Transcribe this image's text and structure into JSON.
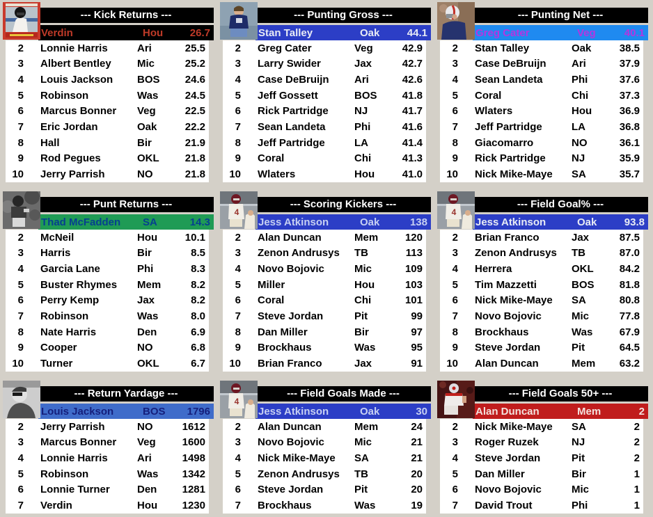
{
  "ui_colors": {
    "page_bg": "#d4d0c8",
    "panel_bg": "#ffffff",
    "header_bg": "#000000",
    "header_fg": "#ffffff",
    "row_fg": "#000000"
  },
  "panels": [
    {
      "id": "kick-returns",
      "title": "--- Kick Returns ---",
      "photo": "gamblers-card-photo",
      "leader": {
        "name": "Verdin",
        "team": "Hou",
        "value": "26.7",
        "bg": "#000000",
        "fg": "#bf3a28"
      },
      "rows": [
        {
          "rank": "2",
          "name": "Lonnie Harris",
          "team": "Ari",
          "value": "25.5"
        },
        {
          "rank": "3",
          "name": "Albert Bentley",
          "team": "Mic",
          "value": "25.2"
        },
        {
          "rank": "4",
          "name": "Louis Jackson",
          "team": "BOS",
          "value": "24.6"
        },
        {
          "rank": "5",
          "name": "Robinson",
          "team": "Was",
          "value": "24.5"
        },
        {
          "rank": "6",
          "name": "Marcus Bonner",
          "team": "Veg",
          "value": "22.5"
        },
        {
          "rank": "7",
          "name": "Eric Jordan",
          "team": "Oak",
          "value": "22.2"
        },
        {
          "rank": "8",
          "name": "Hall",
          "team": "Bir",
          "value": "21.9"
        },
        {
          "rank": "9",
          "name": "Rod Pegues",
          "team": "OKL",
          "value": "21.8"
        },
        {
          "rank": "10",
          "name": "Jerry Parrish",
          "team": "NO",
          "value": "21.8"
        }
      ]
    },
    {
      "id": "punting-gross",
      "title": "--- Punting Gross ---",
      "photo": "punter-photo",
      "leader": {
        "name": "Stan Talley",
        "team": "Oak",
        "value": "44.1",
        "bg": "#2c3ec6",
        "fg": "#e8ebf5"
      },
      "rows": [
        {
          "rank": "2",
          "name": "Greg Cater",
          "team": "Veg",
          "value": "42.9"
        },
        {
          "rank": "3",
          "name": "Larry Swider",
          "team": "Jax",
          "value": "42.7"
        },
        {
          "rank": "4",
          "name": "Case DeBruijn",
          "team": "Ari",
          "value": "42.6"
        },
        {
          "rank": "5",
          "name": "Jeff Gossett",
          "team": "BOS",
          "value": "41.8"
        },
        {
          "rank": "6",
          "name": "Rick Partridge",
          "team": "NJ",
          "value": "41.7"
        },
        {
          "rank": "7",
          "name": "Sean Landeta",
          "team": "Phi",
          "value": "41.6"
        },
        {
          "rank": "8",
          "name": "Jeff Partridge",
          "team": "LA",
          "value": "41.4"
        },
        {
          "rank": "9",
          "name": "Coral",
          "team": "Chi",
          "value": "41.3"
        },
        {
          "rank": "10",
          "name": "Wlaters",
          "team": "Hou",
          "value": "41.0"
        }
      ]
    },
    {
      "id": "punting-net",
      "title": "--- Punting Net ---",
      "photo": "bills-punter-photo",
      "leader": {
        "name": "Greg Cater",
        "team": "Veg",
        "value": "40.1",
        "bg": "#1f8af0",
        "fg": "#b535e0"
      },
      "rows": [
        {
          "rank": "2",
          "name": "Stan Talley",
          "team": "Oak",
          "value": "38.5"
        },
        {
          "rank": "3",
          "name": "Case DeBruijn",
          "team": "Ari",
          "value": "37.9"
        },
        {
          "rank": "4",
          "name": "Sean Landeta",
          "team": "Phi",
          "value": "37.6"
        },
        {
          "rank": "5",
          "name": "Coral",
          "team": "Chi",
          "value": "37.3"
        },
        {
          "rank": "6",
          "name": "Wlaters",
          "team": "Hou",
          "value": "36.9"
        },
        {
          "rank": "7",
          "name": "Jeff Partridge",
          "team": "LA",
          "value": "36.8"
        },
        {
          "rank": "8",
          "name": "Giacomarro",
          "team": "NO",
          "value": "36.1"
        },
        {
          "rank": "9",
          "name": "Rick Partridge",
          "team": "NJ",
          "value": "35.9"
        },
        {
          "rank": "10",
          "name": "Nick Mike-Maye",
          "team": "SA",
          "value": "35.7"
        }
      ]
    },
    {
      "id": "punt-returns",
      "title": "--- Punt Returns ---",
      "photo": "bw-returner-photo",
      "leader": {
        "name": "Thad McFadden",
        "team": "SA",
        "value": "14.3",
        "bg": "#1f9b55",
        "fg": "#06408f"
      },
      "rows": [
        {
          "rank": "2",
          "name": "McNeil",
          "team": "Hou",
          "value": "10.1"
        },
        {
          "rank": "3",
          "name": "Harris",
          "team": "Bir",
          "value": "8.5"
        },
        {
          "rank": "4",
          "name": "Garcia Lane",
          "team": "Phi",
          "value": "8.3"
        },
        {
          "rank": "5",
          "name": "Buster Rhymes",
          "team": "Mem",
          "value": "8.2"
        },
        {
          "rank": "6",
          "name": "Perry Kemp",
          "team": "Jax",
          "value": "8.2"
        },
        {
          "rank": "7",
          "name": "Robinson",
          "team": "Was",
          "value": "8.0"
        },
        {
          "rank": "8",
          "name": "Nate Harris",
          "team": "Den",
          "value": "6.9"
        },
        {
          "rank": "9",
          "name": "Cooper",
          "team": "NO",
          "value": "6.8"
        },
        {
          "rank": "10",
          "name": "Turner",
          "team": "OKL",
          "value": "6.7"
        }
      ]
    },
    {
      "id": "scoring-kickers",
      "title": "--- Scoring Kickers ---",
      "photo": "kicker-photo",
      "leader": {
        "name": "Jess Atkinson",
        "team": "Oak",
        "value": "138",
        "bg": "#2c3ec6",
        "fg": "#c7d0f2"
      },
      "rows": [
        {
          "rank": "2",
          "name": "Alan Duncan",
          "team": "Mem",
          "value": "120"
        },
        {
          "rank": "3",
          "name": "Zenon Andrusys",
          "team": "TB",
          "value": "113"
        },
        {
          "rank": "4",
          "name": "Novo Bojovic",
          "team": "Mic",
          "value": "109"
        },
        {
          "rank": "5",
          "name": "Miller",
          "team": "Hou",
          "value": "103"
        },
        {
          "rank": "6",
          "name": "Coral",
          "team": "Chi",
          "value": "101"
        },
        {
          "rank": "7",
          "name": "Steve Jordan",
          "team": "Pit",
          "value": "99"
        },
        {
          "rank": "8",
          "name": "Dan Miller",
          "team": "Bir",
          "value": "97"
        },
        {
          "rank": "9",
          "name": "Brockhaus",
          "team": "Was",
          "value": "95"
        },
        {
          "rank": "10",
          "name": "Brian Franco",
          "team": "Jax",
          "value": "91"
        }
      ]
    },
    {
      "id": "field-goal-pct",
      "title": "--- Field Goal% ---",
      "photo": "kicker-photo",
      "leader": {
        "name": "Jess Atkinson",
        "team": "Oak",
        "value": "93.8",
        "bg": "#2c3ec6",
        "fg": "#e8ebf5"
      },
      "rows": [
        {
          "rank": "2",
          "name": "Brian Franco",
          "team": "Jax",
          "value": "87.5"
        },
        {
          "rank": "3",
          "name": "Zenon Andrusys",
          "team": "TB",
          "value": "87.0"
        },
        {
          "rank": "4",
          "name": "Herrera",
          "team": "OKL",
          "value": "84.2"
        },
        {
          "rank": "5",
          "name": "Tim Mazzetti",
          "team": "BOS",
          "value": "81.8"
        },
        {
          "rank": "6",
          "name": "Nick Mike-Maye",
          "team": "SA",
          "value": "80.8"
        },
        {
          "rank": "7",
          "name": "Novo Bojovic",
          "team": "Mic",
          "value": "77.8"
        },
        {
          "rank": "8",
          "name": "Brockhaus",
          "team": "Was",
          "value": "67.9"
        },
        {
          "rank": "9",
          "name": "Steve Jordan",
          "team": "Pit",
          "value": "64.5"
        },
        {
          "rank": "10",
          "name": "Alan Duncan",
          "team": "Mem",
          "value": "63.2"
        }
      ]
    },
    {
      "id": "return-yardage",
      "title": "--- Return Yardage ---",
      "photo": "bw-portrait-photo",
      "leader": {
        "name": "Louis Jackson",
        "team": "BOS",
        "value": "1796",
        "bg": "#3f6cca",
        "fg": "#151f7c"
      },
      "rows": [
        {
          "rank": "2",
          "name": "Jerry Parrish",
          "team": "NO",
          "value": "1612"
        },
        {
          "rank": "3",
          "name": "Marcus Bonner",
          "team": "Veg",
          "value": "1600"
        },
        {
          "rank": "4",
          "name": "Lonnie Harris",
          "team": "Ari",
          "value": "1498"
        },
        {
          "rank": "5",
          "name": "Robinson",
          "team": "Was",
          "value": "1342"
        },
        {
          "rank": "6",
          "name": "Lonnie Turner",
          "team": "Den",
          "value": "1281"
        },
        {
          "rank": "7",
          "name": "Verdin",
          "team": "Hou",
          "value": "1230"
        }
      ]
    },
    {
      "id": "field-goals-made",
      "title": "--- Field Goals Made ---",
      "photo": "kicker-photo",
      "leader": {
        "name": "Jess Atkinson",
        "team": "Oak",
        "value": "30",
        "bg": "#2c3ec6",
        "fg": "#c7d0f2"
      },
      "rows": [
        {
          "rank": "2",
          "name": "Alan Duncan",
          "team": "Mem",
          "value": "24"
        },
        {
          "rank": "3",
          "name": "Novo Bojovic",
          "team": "Mic",
          "value": "21"
        },
        {
          "rank": "4",
          "name": "Nick Mike-Maye",
          "team": "SA",
          "value": "21"
        },
        {
          "rank": "5",
          "name": "Zenon Andrusys",
          "team": "TB",
          "value": "20"
        },
        {
          "rank": "6",
          "name": "Steve Jordan",
          "team": "Pit",
          "value": "20"
        },
        {
          "rank": "7",
          "name": "Brockhaus",
          "team": "Was",
          "value": "19"
        }
      ]
    },
    {
      "id": "field-goals-50plus",
      "title": "--- Field Goals 50+ ---",
      "photo": "runner-photo",
      "leader": {
        "name": "Alan Duncan",
        "team": "Mem",
        "value": "2",
        "bg": "#c01d1d",
        "fg": "#f3e2de"
      },
      "rows": [
        {
          "rank": "2",
          "name": "Nick Mike-Maye",
          "team": "SA",
          "value": "2"
        },
        {
          "rank": "3",
          "name": "Roger Ruzek",
          "team": "NJ",
          "value": "2"
        },
        {
          "rank": "4",
          "name": "Steve Jordan",
          "team": "Pit",
          "value": "2"
        },
        {
          "rank": "5",
          "name": "Dan Miller",
          "team": "Bir",
          "value": "1"
        },
        {
          "rank": "6",
          "name": "Novo Bojovic",
          "team": "Mic",
          "value": "1"
        },
        {
          "rank": "7",
          "name": "David Trout",
          "team": "Phi",
          "value": "1"
        }
      ]
    }
  ]
}
